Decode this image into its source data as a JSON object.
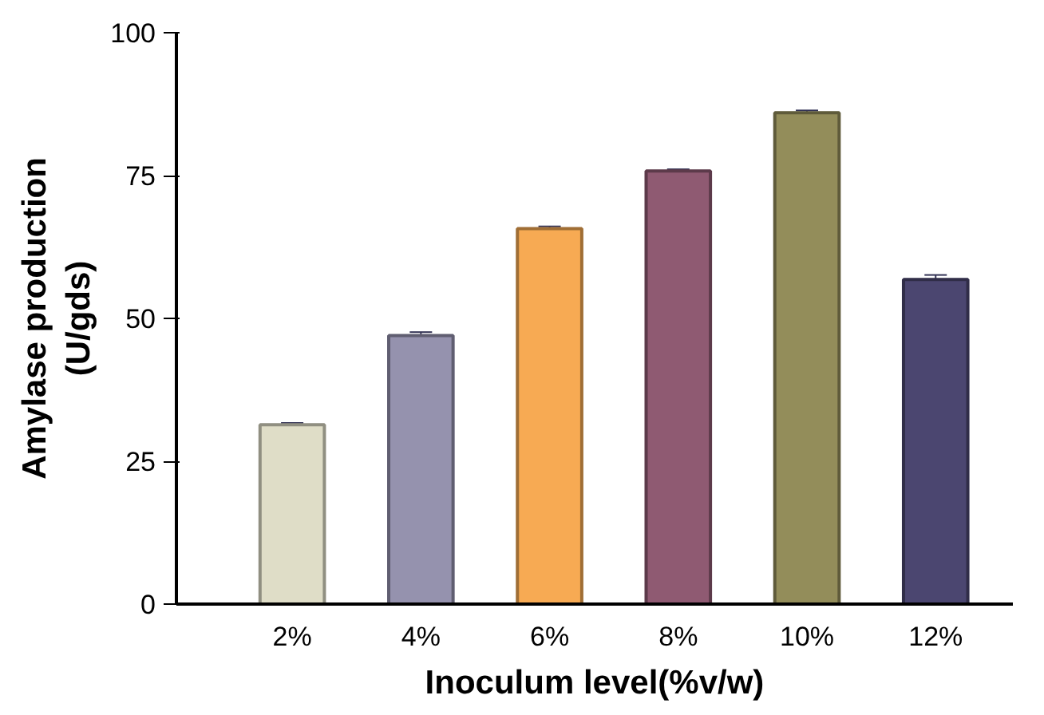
{
  "chart_data": {
    "type": "bar",
    "xlabel": "Inoculum level(%v/w)",
    "ylabel": "Amylase production\n(U/gds)",
    "categories": [
      "2%",
      "4%",
      "6%",
      "8%",
      "10%",
      "12%"
    ],
    "values": [
      31.4,
      47.0,
      65.7,
      75.8,
      86.0,
      56.8
    ],
    "errors": [
      0.3,
      0.6,
      0.4,
      0.3,
      0.4,
      0.8
    ],
    "colors": [
      "#dfddc7",
      "#9592ae",
      "#f7aa53",
      "#8f5a72",
      "#938d5a",
      "#4b4670"
    ],
    "ylim": [
      0,
      100
    ],
    "yticks": [
      0,
      25,
      50,
      75,
      100
    ],
    "grid": false
  }
}
